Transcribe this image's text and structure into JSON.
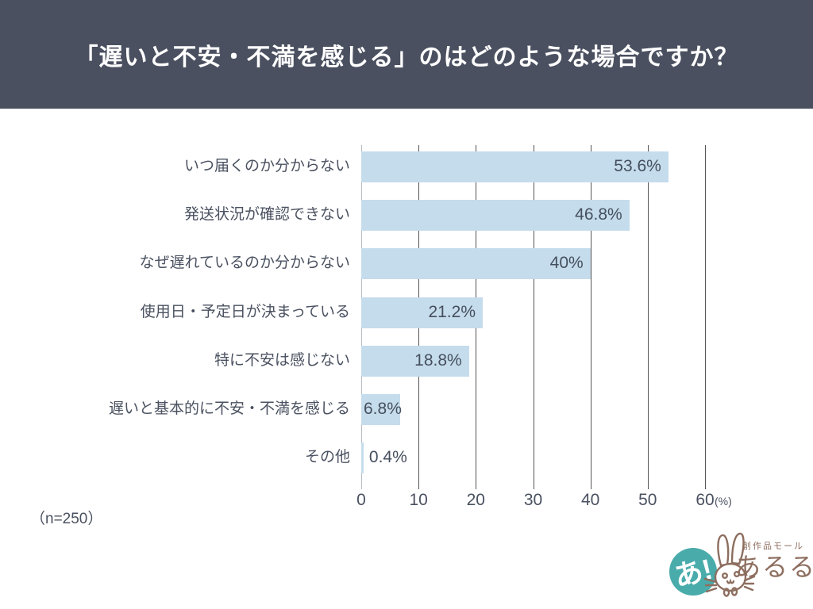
{
  "header": {
    "title": "「遅いと不安・不満を感じる」のはどのような場合ですか？",
    "bg_color": "#4a5060",
    "text_color": "#ffffff"
  },
  "chart_data": {
    "type": "bar",
    "orientation": "horizontal",
    "title": "「遅いと不安・不満を感じる」のはどのような場合ですか？",
    "categories": [
      "いつ届くのか分からない",
      "発送状況が確認できない",
      "なぜ遅れているのか分からない",
      "使用日・予定日が決まっている",
      "特に不安は感じない",
      "遅いと基本的に不安・不満を感じる",
      "その他"
    ],
    "values": [
      53.6,
      46.8,
      40,
      21.2,
      18.8,
      6.8,
      0.4
    ],
    "value_labels": [
      "53.6%",
      "46.8%",
      "40%",
      "21.2%",
      "18.8%",
      "6.8%",
      "0.4%"
    ],
    "xlabel": "",
    "ylabel": "",
    "xlim": [
      0,
      60
    ],
    "x_ticks": [
      0,
      10,
      20,
      30,
      40,
      50,
      60
    ],
    "x_tick_labels": [
      "0",
      "10",
      "20",
      "30",
      "40",
      "50",
      "60"
    ],
    "x_unit": "(%)",
    "grid": true,
    "legend": "none",
    "bar_color": "#c5dcec",
    "gridline_color": "#555555",
    "zero_axis_color": "#b5bcc3",
    "label_color": "#4a5160"
  },
  "footer": {
    "sample_note": "（n=250）"
  },
  "logo": {
    "badge": "あ!",
    "tagline": "創作品モール",
    "brand": "あるる",
    "teal": "#4aabab",
    "brown": "#8d6e5f"
  }
}
